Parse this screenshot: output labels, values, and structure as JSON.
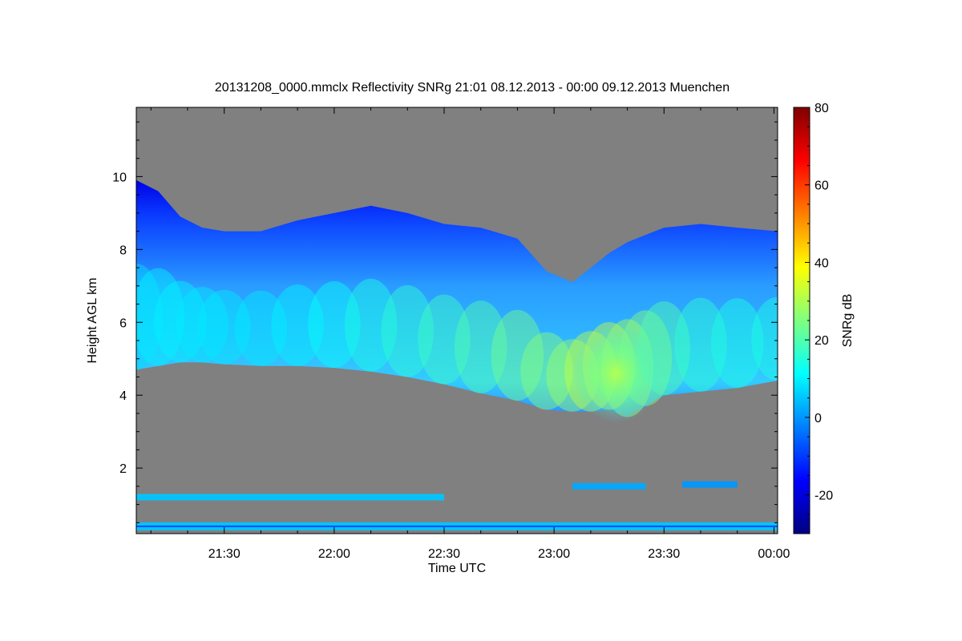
{
  "chart_data": {
    "type": "heatmap",
    "title": "20131208_0000.mmclx Reflectivity SNRg   21:01 08.12.2013 - 00:00 09.12.2013 Muenchen",
    "xlabel": "Time UTC",
    "ylabel": "Height AGL km",
    "x_ticks": [
      "21:30",
      "22:00",
      "22:30",
      "23:00",
      "23:30",
      "00:00"
    ],
    "x_tick_minutes": [
      30,
      60,
      90,
      120,
      150,
      180
    ],
    "xlim_minutes": [
      6,
      181
    ],
    "y_ticks": [
      2,
      4,
      6,
      8,
      10
    ],
    "ylim": [
      0.2,
      11.9
    ],
    "colorbar": {
      "label": "SNRg dB",
      "ticks": [
        -20,
        0,
        20,
        40,
        60,
        80
      ],
      "range": [
        -30,
        80
      ],
      "colormap": "jet"
    },
    "background_color": "#808080",
    "cloud_layer": {
      "minutes": [
        6,
        12,
        18,
        24,
        30,
        40,
        50,
        60,
        70,
        80,
        90,
        100,
        110,
        118,
        125,
        130,
        135,
        140,
        145,
        150,
        160,
        170,
        181
      ],
      "top_km": [
        9.9,
        9.6,
        8.9,
        8.6,
        8.5,
        8.5,
        8.8,
        9.0,
        9.2,
        9.0,
        8.7,
        8.6,
        8.3,
        7.4,
        7.1,
        7.5,
        7.9,
        8.2,
        8.4,
        8.6,
        8.7,
        8.6,
        8.5
      ],
      "base_km": [
        4.7,
        4.8,
        4.9,
        4.9,
        4.85,
        4.8,
        4.8,
        4.75,
        4.65,
        4.5,
        4.3,
        4.05,
        3.85,
        3.6,
        3.55,
        3.55,
        3.6,
        3.4,
        3.7,
        4.0,
        4.1,
        4.2,
        4.4
      ],
      "peak_snr_db": [
        8,
        10,
        10,
        9,
        9,
        9,
        10,
        12,
        14,
        16,
        18,
        20,
        24,
        26,
        28,
        32,
        33,
        30,
        26,
        20,
        16,
        14,
        14
      ]
    },
    "low_layers": [
      {
        "start_minute": 6,
        "end_minute": 90,
        "height_km": 1.2,
        "snr_db": 5
      },
      {
        "start_minute": 125,
        "end_minute": 145,
        "height_km": 1.5,
        "snr_db": 2
      },
      {
        "start_minute": 155,
        "end_minute": 170,
        "height_km": 1.55,
        "snr_db": 0
      },
      {
        "start_minute": 6,
        "end_minute": 181,
        "height_km": 0.4,
        "snr_db": 5
      }
    ]
  }
}
